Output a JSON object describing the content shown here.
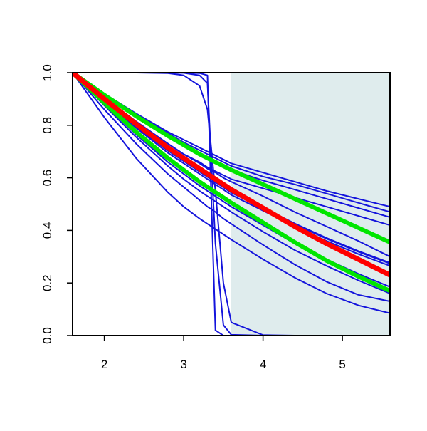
{
  "chart_data": {
    "type": "line",
    "title": "",
    "xlabel": "",
    "ylabel": "",
    "xlim": [
      1.6,
      5.6
    ],
    "ylim": [
      0.0,
      1.0
    ],
    "x_ticks": [
      2,
      3,
      4,
      5
    ],
    "x_tick_labels": [
      "2",
      "3",
      "4",
      "5"
    ],
    "y_ticks": [
      0.0,
      0.2,
      0.4,
      0.6,
      0.8,
      1.0
    ],
    "y_tick_labels": [
      "0.0",
      "0.2",
      "0.4",
      "0.6",
      "0.8",
      "1.0"
    ],
    "grid": false,
    "shaded_region": {
      "x_from": 3.6,
      "x_to": 5.6,
      "color": "#dfeced"
    },
    "colors": {
      "blue": "#1414dc",
      "red": "#ff0000",
      "green": "#00e600",
      "axis": "#000000"
    },
    "x": [
      1.6,
      2.0,
      2.4,
      2.8,
      3.0,
      3.2,
      3.3,
      3.4,
      3.5,
      3.6,
      4.0,
      4.4,
      4.8,
      5.2,
      5.6
    ],
    "series": [
      {
        "color": "blue",
        "width": 2,
        "values": [
          1.0,
          0.9,
          0.81,
          0.73,
          0.69,
          0.66,
          0.64,
          0.625,
          0.61,
          0.595,
          0.56,
          0.525,
          0.49,
          0.455,
          0.42
        ]
      },
      {
        "color": "blue",
        "width": 2,
        "values": [
          1.0,
          0.91,
          0.83,
          0.755,
          0.72,
          0.69,
          0.675,
          0.66,
          0.645,
          0.63,
          0.59,
          0.555,
          0.52,
          0.485,
          0.45
        ]
      },
      {
        "color": "blue",
        "width": 2,
        "values": [
          1.0,
          0.915,
          0.84,
          0.77,
          0.735,
          0.705,
          0.69,
          0.675,
          0.66,
          0.645,
          0.605,
          0.575,
          0.54,
          0.505,
          0.47
        ]
      },
      {
        "color": "blue",
        "width": 2,
        "values": [
          1.0,
          0.92,
          0.845,
          0.775,
          0.745,
          0.715,
          0.7,
          0.685,
          0.67,
          0.655,
          0.62,
          0.585,
          0.55,
          0.52,
          0.49
        ]
      },
      {
        "color": "blue",
        "width": 2,
        "values": [
          1.0,
          0.905,
          0.815,
          0.73,
          0.69,
          0.655,
          0.635,
          0.62,
          0.6,
          0.585,
          0.53,
          0.47,
          0.415,
          0.36,
          0.3
        ]
      },
      {
        "color": "blue",
        "width": 3,
        "values": [
          1.0,
          0.895,
          0.795,
          0.705,
          0.665,
          0.625,
          0.605,
          0.585,
          0.565,
          0.545,
          0.485,
          0.425,
          0.37,
          0.32,
          0.275
        ]
      },
      {
        "color": "blue",
        "width": 2,
        "values": [
          1.0,
          0.89,
          0.79,
          0.695,
          0.655,
          0.615,
          0.595,
          0.575,
          0.555,
          0.535,
          0.475,
          0.415,
          0.36,
          0.31,
          0.265
        ]
      },
      {
        "color": "blue",
        "width": 2,
        "values": [
          1.0,
          0.88,
          0.765,
          0.66,
          0.615,
          0.57,
          0.55,
          0.53,
          0.51,
          0.49,
          0.42,
          0.35,
          0.29,
          0.235,
          0.185
        ]
      },
      {
        "color": "blue",
        "width": 2,
        "values": [
          1.0,
          0.875,
          0.755,
          0.645,
          0.595,
          0.55,
          0.53,
          0.51,
          0.49,
          0.47,
          0.395,
          0.325,
          0.265,
          0.21,
          0.16
        ]
      },
      {
        "color": "blue",
        "width": 2,
        "values": [
          1.0,
          0.86,
          0.73,
          0.615,
          0.565,
          0.515,
          0.49,
          0.47,
          0.445,
          0.425,
          0.345,
          0.27,
          0.205,
          0.155,
          0.13
        ]
      },
      {
        "color": "blue",
        "width": 2,
        "values": [
          1.0,
          0.83,
          0.675,
          0.545,
          0.49,
          0.445,
          0.425,
          0.405,
          0.385,
          0.365,
          0.29,
          0.22,
          0.16,
          0.115,
          0.085
        ]
      },
      {
        "color": "blue",
        "width": 2,
        "values": [
          1.0,
          1.0,
          1.0,
          1.0,
          0.999,
          0.99,
          0.96,
          0.35,
          0.04,
          0.003,
          0.0,
          0.0,
          0.0,
          0.0,
          0.0
        ]
      },
      {
        "color": "blue",
        "width": 2,
        "values": [
          1.0,
          1.0,
          1.0,
          1.0,
          1.0,
          0.998,
          0.99,
          0.02,
          0.0,
          0.0,
          0.0,
          0.0,
          0.0,
          0.0,
          0.0
        ]
      },
      {
        "color": "blue",
        "width": 2,
        "values": [
          1.0,
          1.0,
          1.0,
          0.998,
          0.99,
          0.95,
          0.86,
          0.55,
          0.2,
          0.05,
          0.002,
          0.0,
          0.0,
          0.0,
          0.0
        ]
      },
      {
        "color": "green",
        "width": 6,
        "values": [
          1.0,
          0.915,
          0.835,
          0.76,
          0.725,
          0.69,
          0.675,
          0.66,
          0.645,
          0.63,
          0.575,
          0.52,
          0.465,
          0.41,
          0.355
        ]
      },
      {
        "color": "green",
        "width": 6,
        "values": [
          1.0,
          0.885,
          0.775,
          0.675,
          0.63,
          0.585,
          0.565,
          0.545,
          0.525,
          0.505,
          0.43,
          0.355,
          0.285,
          0.225,
          0.17
        ]
      },
      {
        "color": "red",
        "width": 7,
        "values": [
          1.0,
          0.9,
          0.805,
          0.715,
          0.675,
          0.635,
          0.615,
          0.595,
          0.575,
          0.555,
          0.485,
          0.415,
          0.35,
          0.29,
          0.23
        ]
      }
    ]
  }
}
